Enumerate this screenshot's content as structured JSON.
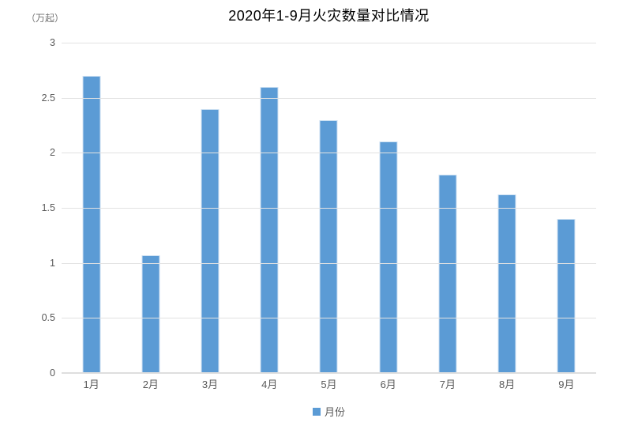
{
  "chart_data": {
    "type": "bar",
    "title": "2020年1-9月火灾数量对比情况",
    "unit_label": "（万起）",
    "categories": [
      "1月",
      "2月",
      "3月",
      "4月",
      "5月",
      "6月",
      "7月",
      "8月",
      "9月"
    ],
    "series": [
      {
        "name": "月份",
        "values": [
          2.7,
          1.07,
          2.4,
          2.6,
          2.3,
          2.1,
          1.8,
          1.62,
          1.4
        ]
      }
    ],
    "ylim": [
      0,
      3
    ],
    "yticks": [
      0,
      0.5,
      1,
      1.5,
      2,
      2.5,
      3
    ],
    "ytick_labels": [
      "0",
      "0.5",
      "1",
      "1.5",
      "2",
      "2.5",
      "3"
    ],
    "grid": true,
    "legend_position": "bottom",
    "legend_items": [
      "月份"
    ],
    "colors": {
      "bar_fill": "#5b9bd5",
      "bar_edge": "#cfe2f3",
      "gridline": "#e2e2e2",
      "axis_line": "#dedede",
      "tick_text": "#595959",
      "title_text": "#000000",
      "unit_text": "#757575"
    }
  }
}
